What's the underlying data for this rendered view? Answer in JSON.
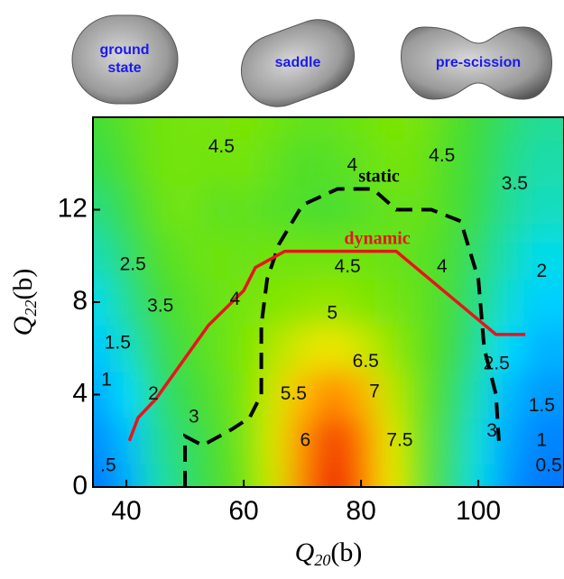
{
  "chart_data": {
    "type": "contour",
    "shapes": [
      {
        "label": [
          "ground",
          "state"
        ]
      },
      {
        "label": [
          "saddle"
        ]
      },
      {
        "label": [
          "pre-scission"
        ]
      }
    ],
    "x_label": {
      "symbol": "Q",
      "subscript": "20",
      "unit": "(b)"
    },
    "y_label": {
      "symbol": "Q",
      "subscript": "22",
      "unit": "(b)"
    },
    "xlim": [
      34.3,
      114.6
    ],
    "ylim": [
      0,
      16
    ],
    "xticks": [
      40,
      60,
      80,
      100
    ],
    "yticks": [
      0,
      4,
      8,
      12
    ],
    "grid_x": [
      35,
      40,
      45,
      50,
      55,
      60,
      65,
      70,
      75,
      80,
      85,
      90,
      95,
      100,
      105,
      110
    ],
    "grid_y": [
      0,
      2,
      4,
      6,
      8,
      10,
      12,
      14,
      16
    ],
    "z": [
      [
        0.3,
        1.0,
        2.5,
        3.2,
        3.8,
        4.5,
        5.5,
        6.8,
        7.8,
        7.0,
        5.8,
        4.5,
        3.2,
        2.0,
        0.8,
        0.3
      ],
      [
        0.6,
        1.3,
        2.7,
        3.3,
        3.9,
        4.6,
        5.6,
        6.7,
        7.5,
        6.9,
        5.7,
        4.5,
        3.3,
        2.1,
        1.0,
        0.5
      ],
      [
        1.0,
        1.8,
        3.0,
        3.6,
        4.1,
        4.7,
        5.5,
        6.3,
        6.8,
        6.4,
        5.4,
        4.5,
        3.5,
        2.4,
        1.3,
        0.8
      ],
      [
        1.5,
        2.3,
        3.3,
        3.9,
        4.3,
        4.7,
        5.2,
        5.6,
        5.8,
        5.5,
        5.0,
        4.4,
        3.7,
        2.8,
        1.8,
        1.2
      ],
      [
        2.0,
        2.8,
        3.7,
        4.1,
        4.4,
        4.6,
        4.8,
        4.9,
        5.0,
        4.8,
        4.6,
        4.3,
        3.8,
        3.0,
        2.2,
        1.6
      ],
      [
        2.5,
        3.2,
        4.0,
        4.3,
        4.5,
        4.4,
        4.5,
        4.5,
        4.5,
        4.5,
        4.4,
        4.2,
        3.9,
        3.2,
        2.5,
        2.0
      ],
      [
        3.0,
        3.6,
        4.3,
        4.6,
        4.2,
        4.3,
        4.1,
        4.0,
        3.9,
        4.1,
        4.3,
        4.4,
        4.0,
        3.5,
        2.8,
        2.4
      ],
      [
        3.5,
        4.0,
        4.5,
        4.6,
        4.5,
        4.6,
        4.3,
        4.0,
        4.1,
        4.3,
        4.6,
        4.5,
        4.0,
        3.6,
        3.0,
        2.6
      ],
      [
        3.8,
        4.2,
        4.5,
        4.6,
        4.6,
        4.7,
        4.5,
        4.3,
        4.3,
        4.5,
        4.7,
        4.6,
        4.1,
        3.7,
        3.2,
        2.8
      ]
    ],
    "contour_labels": [
      {
        "value": 4.5,
        "x": 56.2,
        "y": 14.7
      },
      {
        "value": 4.0,
        "x": 78.5,
        "y": 13.9
      },
      {
        "value": 4.5,
        "x": 93.8,
        "y": 14.3
      },
      {
        "value": 3.5,
        "x": 106.2,
        "y": 13.1
      },
      {
        "value": 2.5,
        "x": 41.1,
        "y": 9.6
      },
      {
        "value": 4.5,
        "x": 77.7,
        "y": 9.5
      },
      {
        "value": 4.0,
        "x": 93.8,
        "y": 9.5
      },
      {
        "value": 2.0,
        "x": 110.8,
        "y": 9.3
      },
      {
        "value": 3.5,
        "x": 45.8,
        "y": 7.8
      },
      {
        "value": 4.0,
        "x": 58.5,
        "y": 8.1
      },
      {
        "value": 5.0,
        "x": 75.1,
        "y": 7.5
      },
      {
        "value": 1.5,
        "x": 38.5,
        "y": 6.2
      },
      {
        "value": 6.5,
        "x": 80.8,
        "y": 5.4
      },
      {
        "value": 2.5,
        "x": 103.1,
        "y": 5.3
      },
      {
        "value": 1.0,
        "x": 36.6,
        "y": 4.6
      },
      {
        "value": 2.0,
        "x": 44.6,
        "y": 4.0
      },
      {
        "value": 5.5,
        "x": 68.5,
        "y": 4.0
      },
      {
        "value": 7.0,
        "x": 82.3,
        "y": 4.1
      },
      {
        "value": 1.5,
        "x": 110.8,
        "y": 3.5
      },
      {
        "value": 3.0,
        "x": 51.5,
        "y": 3.0
      },
      {
        "value": 6.0,
        "x": 70.5,
        "y": 2.0
      },
      {
        "value": 7.5,
        "x": 86.6,
        "y": 2.0
      },
      {
        "value": 3.0,
        "x": 102.3,
        "y": 2.4
      },
      {
        "value": 1.0,
        "x": 110.8,
        "y": 2.0
      },
      {
        "value": 0.5,
        "label": ".5",
        "x": 36.9,
        "y": 0.9
      },
      {
        "value": 0.5,
        "x": 112.0,
        "y": 0.9
      }
    ],
    "series": [
      {
        "name": "static",
        "color": "#000000",
        "dashed": true,
        "x": [
          50,
          50,
          53,
          58,
          61,
          63,
          63,
          64,
          66,
          70,
          76,
          82,
          86,
          92,
          97,
          100,
          101,
          103,
          103.5
        ],
        "y": [
          0,
          2.2,
          1.8,
          2.5,
          3,
          4,
          7,
          9,
          10.5,
          12.2,
          12.9,
          12.9,
          12,
          12,
          11.5,
          9,
          6,
          4,
          2
        ]
      },
      {
        "name": "dynamic",
        "color": "#e8141c",
        "dashed": false,
        "x": [
          40.5,
          42,
          45,
          54,
          60,
          62,
          67,
          86,
          103,
          108
        ],
        "y": [
          2,
          3,
          3.8,
          7,
          8.5,
          9.5,
          10.2,
          10.2,
          6.6,
          6.6
        ]
      }
    ]
  }
}
